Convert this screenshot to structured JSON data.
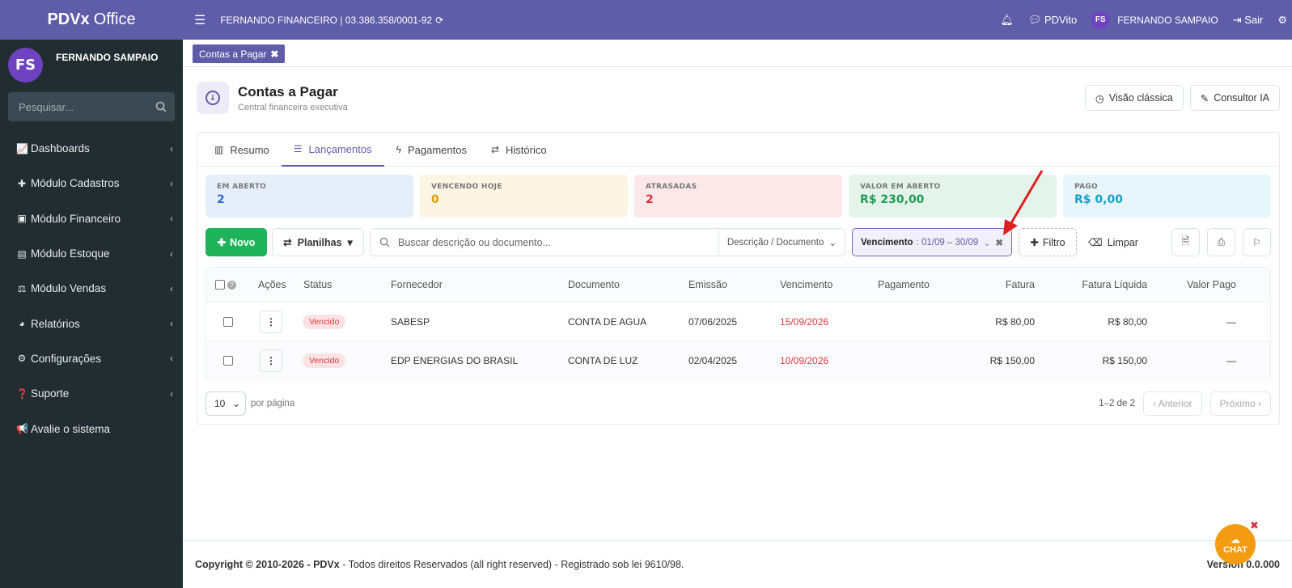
{
  "brand": {
    "bold": "PDVx",
    "rest": "Office"
  },
  "user": {
    "initials": "FS",
    "name": "FERNANDO SAMPAIO"
  },
  "sidebar": {
    "search_placeholder": "Pesquisar...",
    "items": [
      {
        "label": "Dashboards",
        "icon": "area-chart-icon"
      },
      {
        "label": "Módulo Cadastros",
        "icon": "plus-icon"
      },
      {
        "label": "Módulo Financeiro",
        "icon": "money-icon"
      },
      {
        "label": "Módulo Estoque",
        "icon": "archive-icon"
      },
      {
        "label": "Módulo Vendas",
        "icon": "balance-scale-icon"
      },
      {
        "label": "Relatórios",
        "icon": "pie-chart-icon"
      },
      {
        "label": "Configurações",
        "icon": "cogs-icon"
      },
      {
        "label": "Suporte",
        "icon": "question-circle-icon"
      },
      {
        "label": "Avalie o sistema",
        "icon": "bullhorn-icon"
      }
    ]
  },
  "topbar": {
    "company": "FERNANDO FINANCEIRO | 03.386.358/0001-92",
    "assistant": "PDVito",
    "user_initials": "FS",
    "user_name": "FERNANDO SAMPAIO",
    "logout": "Sair"
  },
  "open_tab": {
    "label": "Contas a Pagar"
  },
  "page": {
    "title": "Contas a Pagar",
    "subtitle": "Central financeira executiva",
    "classic_view": "Visão clássica",
    "ai_consult": "Consultor IA"
  },
  "tabs": [
    {
      "label": "Resumo",
      "icon": "bar-chart-icon"
    },
    {
      "label": "Lançamentos",
      "icon": "list-icon",
      "active": true
    },
    {
      "label": "Pagamentos",
      "icon": "bolt-icon"
    },
    {
      "label": "Histórico",
      "icon": "exchange-icon"
    }
  ],
  "cards": [
    {
      "label": "EM ABERTO",
      "value": "2"
    },
    {
      "label": "VENCENDO HOJE",
      "value": "0"
    },
    {
      "label": "ATRASADAS",
      "value": "2"
    },
    {
      "label": "VALOR EM ABERTO",
      "value": "R$ 230,00"
    },
    {
      "label": "PAGO",
      "value": "R$ 0,00"
    }
  ],
  "toolbar": {
    "new_label": "Novo",
    "sheets_label": "Planilhas",
    "search_placeholder": "Buscar descrição ou documento...",
    "search_field": "Descrição / Documento",
    "chip_key": "Vencimento",
    "chip_value": ": 01/09 – 30/09",
    "filter_label": "Filtro",
    "clear_label": "Limpar"
  },
  "table": {
    "columns": [
      "Ações",
      "Status",
      "Fornecedor",
      "Documento",
      "Emissão",
      "Vencimento",
      "Pagamento",
      "Fatura",
      "Fatura Líquida",
      "Valor Pago"
    ],
    "rows": [
      {
        "status": "Vencido",
        "fornecedor": "SABESP",
        "documento": "CONTA DE AGUA",
        "emissao": "07/06/2025",
        "vencimento": "15/09/2026",
        "pagamento": "",
        "fatura": "R$ 80,00",
        "fatura_liquida": "R$ 80,00",
        "valor_pago": "—"
      },
      {
        "status": "Vencido",
        "fornecedor": "EDP ENERGIAS DO BRASIL",
        "documento": "CONTA DE LUZ",
        "emissao": "02/04/2025",
        "vencimento": "10/09/2026",
        "pagamento": "",
        "fatura": "R$ 150,00",
        "fatura_liquida": "R$ 150,00",
        "valor_pago": "—"
      }
    ]
  },
  "pager": {
    "per_page": "10",
    "per_page_label": "por página",
    "range": "1–2 de 2",
    "prev": "‹ Anterior",
    "next": "Próximo ›"
  },
  "footer": {
    "copyright_bold": "Copyright © 2010-2026 - PDVx",
    "copyright_rest": " - Todos direitos Reservados (all right reserved) - Registrado sob lei 9610/98.",
    "version": "Version 0.0.000"
  },
  "chat": {
    "label": "CHAT"
  },
  "colors": {
    "primary": "#5f5ca8",
    "sidebar": "#222d32",
    "success": "#1fb35b",
    "danger": "#d92d3a",
    "chat": "#f39c12"
  }
}
